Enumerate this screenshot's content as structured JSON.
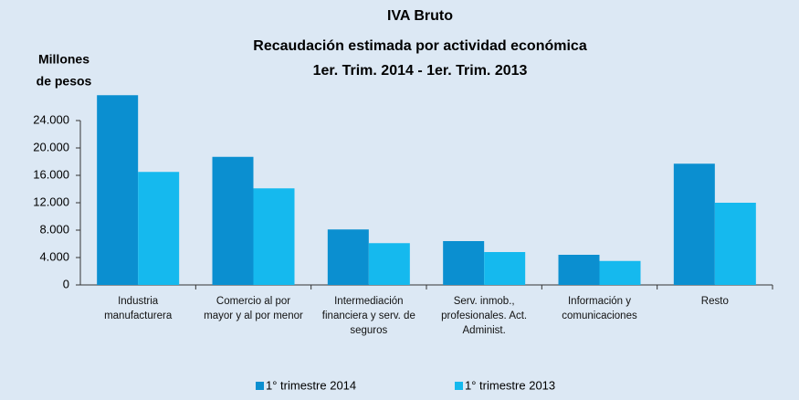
{
  "chart_data": {
    "type": "bar",
    "title": [
      "IVA Bruto",
      "Recaudación estimada por actividad económica",
      "1er. Trim. 2014 - 1er. Trim. 2013"
    ],
    "ylabel": [
      "Millones",
      "de pesos"
    ],
    "categories": [
      "Industria manufacturera",
      "Comercio al por mayor y al por menor",
      "Intermediación financiera y serv. de seguros",
      "Serv. inmob., profesionales. Act. Administ.",
      "Información y comunicaciones",
      "Resto"
    ],
    "series": [
      {
        "name": "1° trimestre 2014",
        "color": "#0b8fd0",
        "values": [
          27700,
          18700,
          8100,
          6400,
          4400,
          17700
        ]
      },
      {
        "name": "1° trimestre 2013",
        "color": "#15b9ee",
        "values": [
          16500,
          14100,
          6100,
          4800,
          3500,
          12000
        ]
      }
    ],
    "ylim": [
      0,
      28000
    ],
    "yticks": [
      0,
      {
        "value": 4000,
        "label": "4.000"
      },
      {
        "value": 8000,
        "label": "8.000"
      },
      {
        "value": 12000,
        "label": "12.000"
      },
      {
        "value": 16000,
        "label": "16.000"
      },
      {
        "value": 20000,
        "label": "20.000"
      },
      {
        "value": 24000,
        "label": "24.000"
      }
    ],
    "legend": "bottom"
  }
}
